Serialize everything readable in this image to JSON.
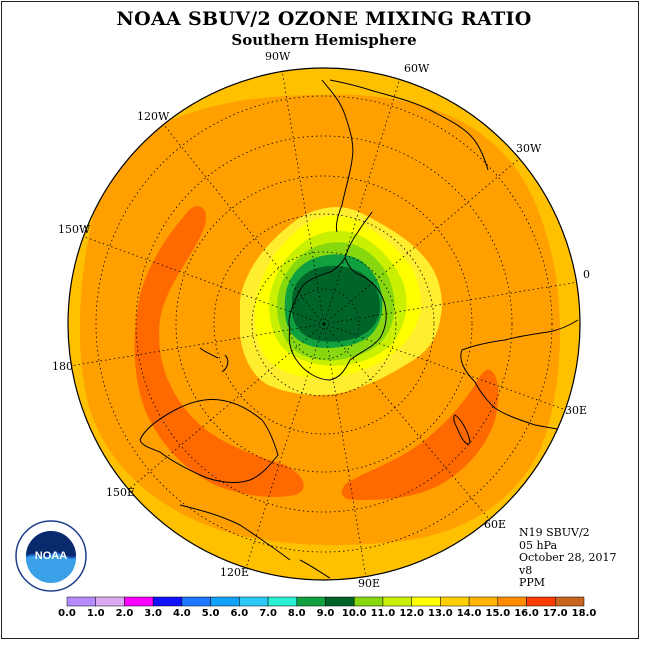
{
  "title": "NOAA SBUV/2 OZONE MIXING RATIO",
  "subtitle": "Southern Hemisphere",
  "longitude_labels": {
    "lon_90w": "90W",
    "lon_60w": "60W",
    "lon_30w": "30W",
    "lon_0": "0",
    "lon_30e": "30E",
    "lon_60e": "60E",
    "lon_90e": "90E",
    "lon_120e": "120E",
    "lon_150e": "150E",
    "lon_180": "180",
    "lon_150w": "150W",
    "lon_120w": "120W"
  },
  "info": {
    "instrument": "N19 SBUV/2",
    "level": "05 hPa",
    "date": "October 28, 2017",
    "version": "v8",
    "units": "PPM"
  },
  "logo_text": "NOAA",
  "colorbar": {
    "ticks": [
      "0.0",
      "1.0",
      "2.0",
      "3.0",
      "4.0",
      "5.0",
      "6.0",
      "7.0",
      "8.0",
      "9.0",
      "10.0",
      "11.0",
      "12.0",
      "13.0",
      "14.0",
      "15.0",
      "16.0",
      "17.0",
      "18.0"
    ],
    "colors": [
      "#b48cff",
      "#dca8f0",
      "#ff00ff",
      "#1010ff",
      "#1c78ff",
      "#10a0f8",
      "#2cc8f8",
      "#28f0d0",
      "#10a040",
      "#006428",
      "#88d810",
      "#c8f000",
      "#ffff00",
      "#ffd000",
      "#ffb400",
      "#ff8c00",
      "#ff3c00",
      "#c8641e"
    ]
  },
  "chart_data": {
    "type": "heatmap",
    "title": "NOAA SBUV/2 OZONE MIXING RATIO",
    "subtitle": "Southern Hemisphere",
    "projection": "south polar stereographic",
    "units": "PPM",
    "color_scale_range": [
      0,
      18
    ],
    "color_scale_step": 1,
    "regions": [
      {
        "region": "outer ring (low latitudes)",
        "value_range": [
          13,
          14
        ]
      },
      {
        "region": "mid-latitudes",
        "value_range": [
          14,
          15
        ]
      },
      {
        "region": "band over Pacific and south of Africa/Indian Ocean",
        "value_range": [
          15,
          16
        ]
      },
      {
        "region": "collar around Antarctica",
        "value_range": [
          12,
          13
        ]
      },
      {
        "region": "inner ring",
        "value_range": [
          11,
          12
        ]
      },
      {
        "region": "polar vortex edge",
        "value_range": [
          8,
          9
        ]
      },
      {
        "region": "polar vortex core",
        "value_range": [
          9,
          10
        ]
      }
    ]
  }
}
